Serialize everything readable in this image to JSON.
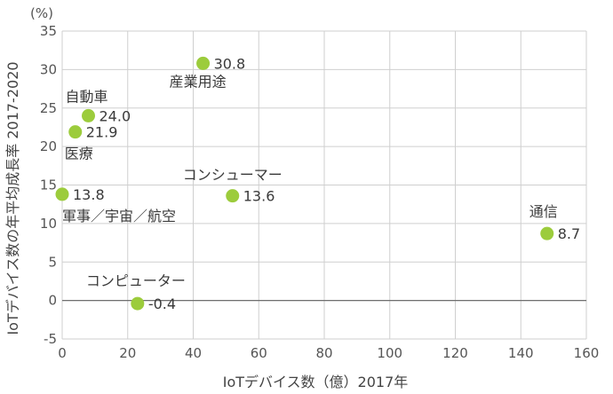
{
  "chart_data": {
    "type": "scatter",
    "xlabel": "IoTデバイス数（億）2017年",
    "ylabel": "IoTデバイス数の年平均成長率 2017-2020",
    "y_unit": "(%)",
    "xlim": [
      0,
      160
    ],
    "ylim": [
      -5,
      35
    ],
    "x_ticks": [
      0,
      20,
      40,
      60,
      80,
      100,
      120,
      140,
      160
    ],
    "y_ticks": [
      -5,
      0,
      5,
      10,
      15,
      20,
      25,
      30,
      35
    ],
    "grid": true,
    "point_color": "#9ccc3c",
    "points": [
      {
        "name": "産業用途",
        "x": 43,
        "y": 30.8,
        "value_label": "30.8"
      },
      {
        "name": "自動車",
        "x": 8,
        "y": 24.0,
        "value_label": "24.0"
      },
      {
        "name": "医療",
        "x": 4,
        "y": 21.9,
        "value_label": "21.9"
      },
      {
        "name": "軍事／宇宙／航空",
        "x": 0,
        "y": 13.8,
        "value_label": "13.8"
      },
      {
        "name": "コンシューマー",
        "x": 52,
        "y": 13.6,
        "value_label": "13.6"
      },
      {
        "name": "通信",
        "x": 148,
        "y": 8.7,
        "value_label": "8.7"
      },
      {
        "name": "コンピューター",
        "x": 23,
        "y": -0.4,
        "value_label": "-0.4"
      }
    ]
  }
}
